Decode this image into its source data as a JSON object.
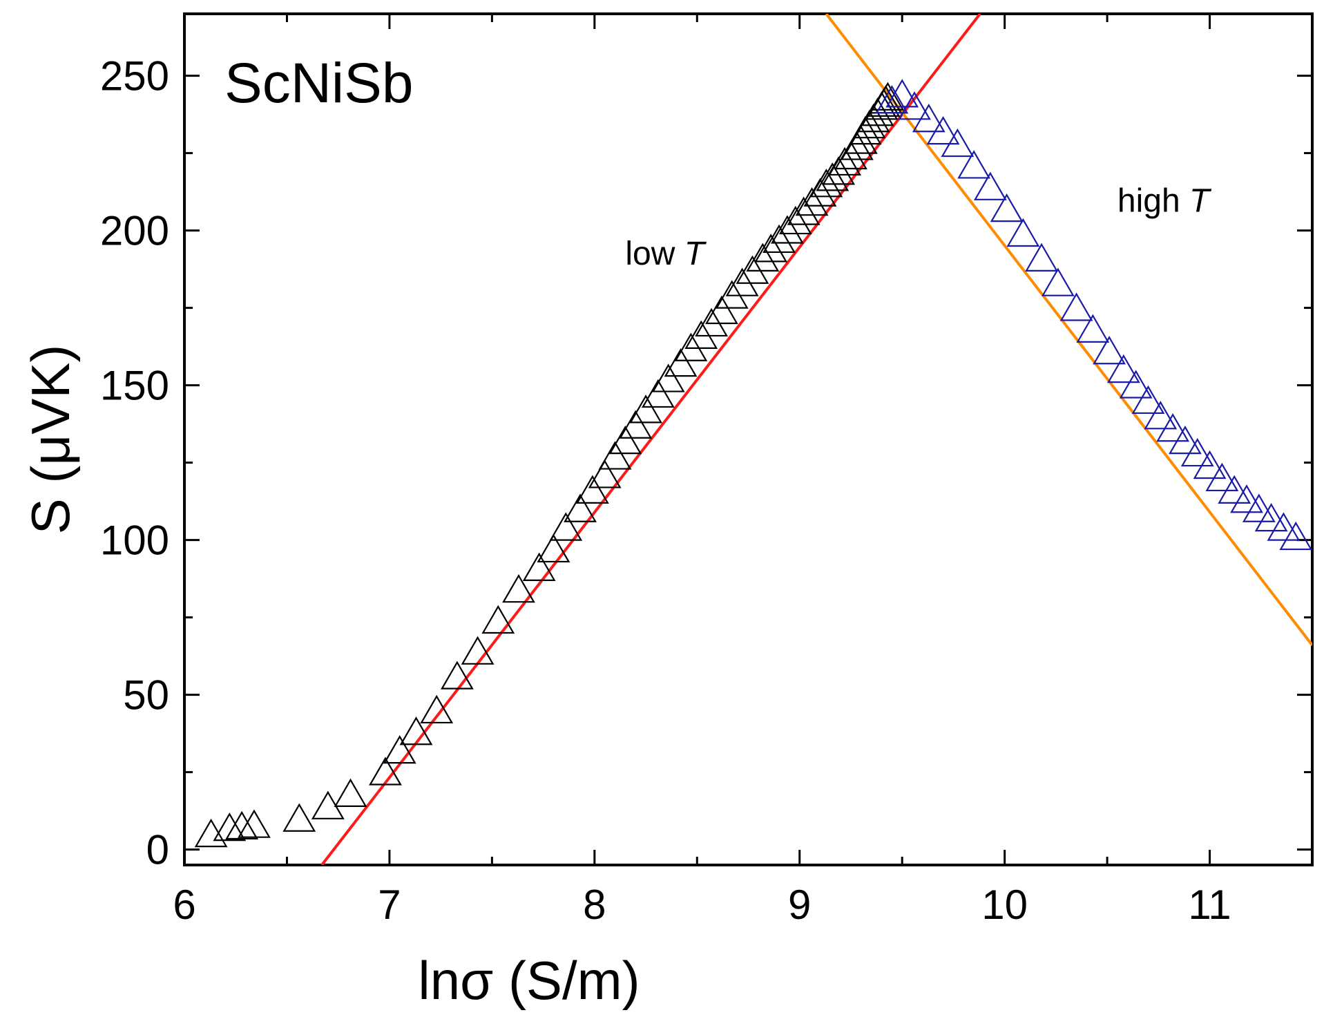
{
  "chart_data": {
    "type": "scatter",
    "title": "ScNiSb",
    "xlabel": "lnσ (S/m)",
    "ylabel": "S (μVK)",
    "xlim": [
      6.0,
      11.5
    ],
    "ylim": [
      -5,
      270
    ],
    "xticks": [
      6,
      7,
      8,
      9,
      10,
      11
    ],
    "yticks": [
      0,
      50,
      100,
      150,
      200,
      250
    ],
    "grid": false,
    "annotations": [
      {
        "prefix": "low ",
        "italic": "T",
        "x": 8.15,
        "y": 189
      },
      {
        "prefix": "high ",
        "italic": "T",
        "x": 10.55,
        "y": 206
      }
    ],
    "colors": {
      "low_T": "#000000",
      "high_T": "#1a1aa8",
      "fit_low": "#ff1a1a",
      "fit_high": "#ff8c00"
    },
    "series": [
      {
        "name": "low T",
        "marker": "open-triangle",
        "x": [
          6.13,
          6.22,
          6.28,
          6.34,
          6.56,
          6.7,
          6.81,
          6.98,
          7.05,
          7.13,
          7.23,
          7.33,
          7.43,
          7.53,
          7.63,
          7.73,
          7.8,
          7.86,
          7.93,
          7.99,
          8.05,
          8.1,
          8.15,
          8.2,
          8.25,
          8.31,
          8.36,
          8.42,
          8.47,
          8.52,
          8.57,
          8.62,
          8.67,
          8.72,
          8.77,
          8.82,
          8.86,
          8.9,
          8.94,
          8.98,
          9.02,
          9.06,
          9.1,
          9.13,
          9.16,
          9.19,
          9.22,
          9.25,
          9.28,
          9.3,
          9.32,
          9.34,
          9.36,
          9.38,
          9.4,
          9.41,
          9.42,
          9.43
        ],
        "y": [
          1,
          3,
          3.5,
          4,
          6,
          10,
          14,
          21,
          28,
          34,
          41,
          52,
          60,
          70,
          80,
          87,
          93,
          100,
          106,
          112,
          117,
          123,
          128,
          133,
          138,
          143,
          148,
          153,
          158,
          162,
          166,
          170,
          175,
          179,
          183,
          187,
          190,
          193,
          196,
          199,
          202,
          205,
          208,
          211,
          213,
          215,
          218,
          220,
          223,
          225,
          228,
          230,
          232,
          234,
          236,
          237,
          238,
          239
        ]
      },
      {
        "name": "high T",
        "marker": "open-triangle",
        "x": [
          9.45,
          9.5,
          9.56,
          9.63,
          9.7,
          9.77,
          9.85,
          9.93,
          10.01,
          10.09,
          10.18,
          10.26,
          10.35,
          10.43,
          10.51,
          10.58,
          10.64,
          10.7,
          10.76,
          10.82,
          10.88,
          10.94,
          11.0,
          11.06,
          11.12,
          11.18,
          11.24,
          11.3,
          11.36,
          11.42
        ],
        "y": [
          238,
          240,
          236,
          232,
          228,
          224,
          217,
          210,
          203,
          195,
          187,
          179,
          171,
          164,
          157,
          151,
          146,
          141,
          136,
          132,
          128,
          124,
          120,
          116,
          112,
          109,
          106,
          103,
          100,
          97
        ]
      }
    ],
    "fits": [
      {
        "name": "fit low T",
        "x": [
          6.67,
          9.88
        ],
        "y": [
          -5,
          270
        ]
      },
      {
        "name": "fit high T",
        "x": [
          9.13,
          11.5
        ],
        "y": [
          270,
          66
        ]
      }
    ]
  }
}
